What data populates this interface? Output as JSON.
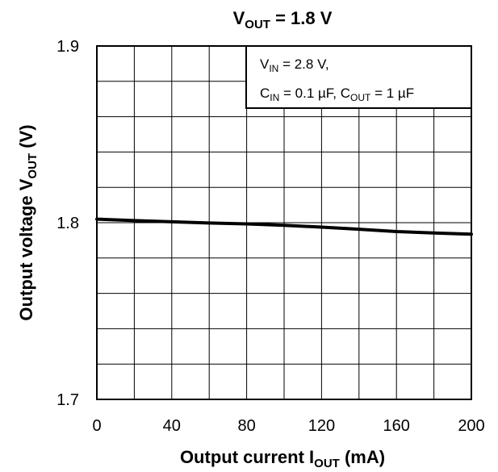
{
  "chart_data": {
    "type": "line",
    "title": {
      "main": "V",
      "sub": "OUT",
      "rest": " = 1.8 V"
    },
    "xlabel": {
      "main": "Output current   I",
      "sub": "OUT",
      "rest": "   (mA)"
    },
    "ylabel": {
      "main": "Output voltage   V",
      "sub": "OUT",
      "rest": "   (V)"
    },
    "xlim": [
      0,
      200
    ],
    "ylim": [
      1.7,
      1.9
    ],
    "x_ticks": [
      "0",
      "40",
      "80",
      "120",
      "160",
      "200"
    ],
    "y_ticks": [
      "1.7",
      "1.8",
      "1.9"
    ],
    "grid": true,
    "grid_x_step": 20,
    "grid_y_step": 0.02,
    "legend_position": "top-right",
    "annotation": {
      "line1": {
        "a": "V",
        "a_sub": "IN",
        "a_rest": " = 2.8 V,"
      },
      "line2": {
        "a": "C",
        "a_sub": "IN",
        "a_rest": " = 0.1 µF, C",
        "b_sub": "OUT",
        "b_rest": " = 1 µF"
      }
    },
    "series": [
      {
        "x": [
          0,
          20,
          40,
          60,
          80,
          100,
          120,
          140,
          160,
          180,
          200
        ],
        "values": [
          1.802,
          1.8012,
          1.8005,
          1.7998,
          1.7993,
          1.7985,
          1.7975,
          1.7963,
          1.795,
          1.7942,
          1.7935
        ]
      }
    ]
  }
}
